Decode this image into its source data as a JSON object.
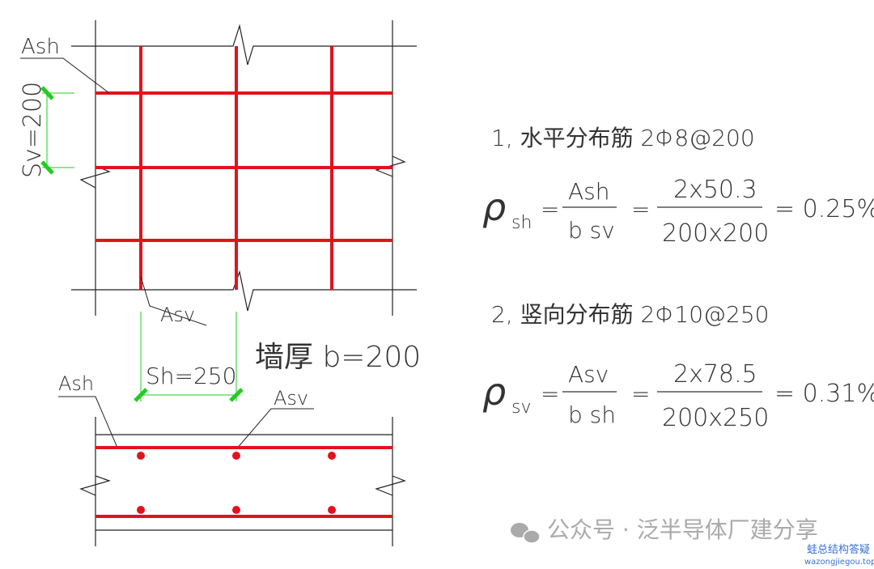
{
  "colors": {
    "rebar": "#e0141c",
    "dimension": "#22cc22",
    "line": "#222222",
    "text": "#333333",
    "watermark": "#aaaaaa",
    "watermark_blue": "#3a6fd8"
  },
  "drawing": {
    "label_ash_top": "Ash",
    "label_sv": "Sv=200",
    "label_asv_top": "Asv",
    "label_sh": "Sh=250",
    "label_wall": "墙厚 b=200",
    "label_ash_section": "Ash",
    "label_asv_section": "Asv"
  },
  "formulas": [
    {
      "heading": "1, 水平分布筋 2Φ8@200",
      "symbol": "ρ",
      "sub": "sh",
      "frac1_num": "Ash",
      "frac1_den": "b sv",
      "frac2_num": "2x50.3",
      "frac2_den": "200x200",
      "result": "= 0.25%"
    },
    {
      "heading": "2, 竖向分布筋 2Φ10@250",
      "symbol": "ρ",
      "sub": "sv",
      "frac1_num": "Asv",
      "frac1_den": "b sh",
      "frac2_num": "2x78.5",
      "frac2_den": "200x250",
      "result": "= 0.31%"
    }
  ],
  "watermark": {
    "text": "公众号 · 泛半导体厂建分享",
    "site_name": "蛙总结构答疑",
    "site_url": "wazongjiegou.top",
    "icon": "wechat-icon"
  }
}
